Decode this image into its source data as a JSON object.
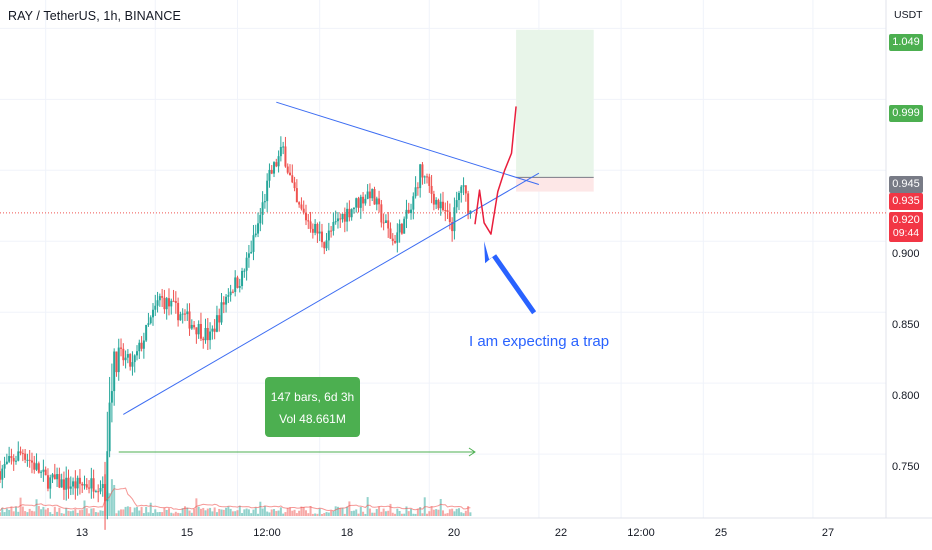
{
  "header": {
    "title": "RAY / TetherUS, 1h, BINANCE",
    "unit": "USDT"
  },
  "colors": {
    "up": "#26a69a",
    "down": "#ef5350",
    "trendline": "#3d6df2",
    "projection": "#e91e3c",
    "arrow": "#2962ff",
    "target_zone": "#e8f5e9",
    "stop_zone": "#fde7e7",
    "range_arrow": "#4caf50",
    "price_badge": "#f23645"
  },
  "chart_data": {
    "type": "candlestick",
    "title": "RAY / TetherUS, 1h, BINANCE",
    "ylabel": "USDT",
    "y_range": [
      0.705,
      1.07
    ],
    "y_ticks": [
      "0.750",
      "0.800",
      "0.850",
      "0.900"
    ],
    "x_ticks": [
      "13",
      "15",
      "12:00",
      "18",
      "20",
      "22",
      "12:00",
      "25",
      "27"
    ],
    "x_range": [
      "2022-03-12 04:00",
      "2022-03-28 08:00"
    ],
    "price_path": [
      [
        "2022-03-12 04:00",
        0.738
      ],
      [
        "2022-03-12 14:00",
        0.752
      ],
      [
        "2022-03-13 00:00",
        0.732
      ],
      [
        "2022-03-13 12:00",
        0.728
      ],
      [
        "2022-03-14 02:00",
        0.73
      ],
      [
        "2022-03-14 04:00",
        0.795
      ],
      [
        "2022-03-14 08:00",
        0.82
      ],
      [
        "2022-03-14 14:00",
        0.812
      ],
      [
        "2022-03-15 02:00",
        0.86
      ],
      [
        "2022-03-15 14:00",
        0.845
      ],
      [
        "2022-03-16 00:00",
        0.832
      ],
      [
        "2022-03-16 08:00",
        0.865
      ],
      [
        "2022-03-16 14:00",
        0.875
      ],
      [
        "2022-03-16 20:00",
        0.905
      ],
      [
        "2022-03-17 02:00",
        0.945
      ],
      [
        "2022-03-17 08:00",
        0.965
      ],
      [
        "2022-03-17 14:00",
        0.925
      ],
      [
        "2022-03-18 02:00",
        0.9
      ],
      [
        "2022-03-18 10:00",
        0.918
      ],
      [
        "2022-03-18 22:00",
        0.935
      ],
      [
        "2022-03-19 08:00",
        0.9
      ],
      [
        "2022-03-19 16:00",
        0.922
      ],
      [
        "2022-03-19 20:00",
        0.95
      ],
      [
        "2022-03-20 04:00",
        0.925
      ],
      [
        "2022-03-20 10:00",
        0.912
      ],
      [
        "2022-03-20 14:00",
        0.94
      ],
      [
        "2022-03-20 18:00",
        0.92
      ]
    ],
    "current_price": 0.92,
    "price_labels": [
      {
        "label": "1.049",
        "value": 1.049,
        "color": "#4caf50"
      },
      {
        "label": "0.999",
        "value": 0.999,
        "color": "#4caf50"
      },
      {
        "label": "0.945",
        "value": 0.945,
        "color": "#787b86"
      },
      {
        "label": "0.935",
        "value": 0.935,
        "color": "#f23645"
      },
      {
        "label": "0.920",
        "sub": "09:44",
        "value": 0.92,
        "color": "#f23645"
      }
    ],
    "long_position": {
      "start": "2022-03-21 14:00",
      "end": "2022-03-23 00:00",
      "entry": 0.945,
      "target": 1.049,
      "stop": 0.935
    },
    "trendlines": [
      {
        "name": "upper",
        "from": [
          "2022-03-17 05:00",
          0.998
        ],
        "to": [
          "2022-03-22 00:00",
          0.94
        ]
      },
      {
        "name": "lower",
        "from": [
          "2022-03-14 10:00",
          0.778
        ],
        "to": [
          "2022-03-22 00:00",
          0.948
        ]
      }
    ],
    "projection_path": [
      [
        "2022-03-20 20:00",
        0.912
      ],
      [
        "2022-03-20 22:00",
        0.936
      ],
      [
        "2022-03-21 00:00",
        0.913
      ],
      [
        "2022-03-21 03:00",
        0.905
      ],
      [
        "2022-03-21 06:00",
        0.935
      ],
      [
        "2022-03-21 09:00",
        0.95
      ],
      [
        "2022-03-21 12:00",
        0.962
      ],
      [
        "2022-03-21 14:00",
        0.995
      ]
    ],
    "annotation": {
      "text": "I am expecting a trap"
    },
    "measure": {
      "line1": "147 bars, 6d 3h",
      "line2": "Vol 48.661M"
    }
  }
}
